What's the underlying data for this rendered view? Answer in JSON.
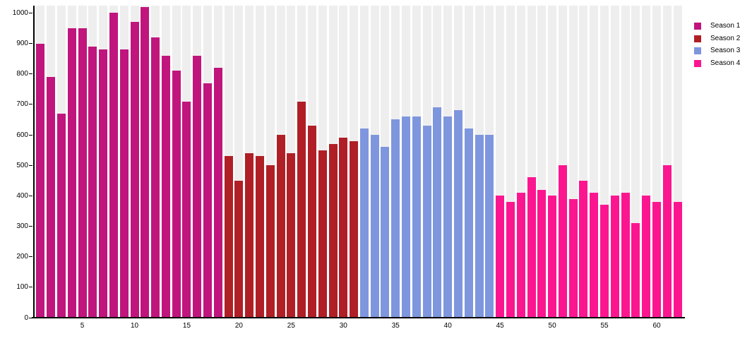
{
  "chart_data": {
    "type": "bar",
    "title": "",
    "xlabel": "",
    "ylabel": "",
    "grid": false,
    "legend_position": "top-right",
    "background_band_color": "#efeeee",
    "axis_color": "#000000",
    "ylim": [
      0,
      1024
    ],
    "y_tick_labels": [
      0,
      100,
      200,
      300,
      400,
      500,
      600,
      700,
      800,
      900,
      1000
    ],
    "x_tick_labels": [
      5,
      10,
      15,
      20,
      25,
      30,
      35,
      40,
      45,
      50,
      55,
      60
    ],
    "x_start": 1,
    "total_bars": 62,
    "series": [
      {
        "name": "Season 1",
        "color": "#c0157d",
        "x_range": [
          1,
          18
        ],
        "values": [
          900,
          790,
          670,
          950,
          950,
          890,
          880,
          1000,
          880,
          970,
          1020,
          920,
          860,
          810,
          710,
          860,
          770,
          820
        ]
      },
      {
        "name": "Season 2",
        "color": "#b01f26",
        "x_range": [
          19,
          31
        ],
        "values": [
          530,
          450,
          540,
          530,
          500,
          600,
          540,
          710,
          630,
          550,
          570,
          590,
          580
        ]
      },
      {
        "name": "Season 3",
        "color": "#7e96de",
        "x_range": [
          32,
          44
        ],
        "values": [
          620,
          600,
          560,
          650,
          660,
          660,
          630,
          690,
          660,
          680,
          620,
          600,
          600
        ]
      },
      {
        "name": "Season 4",
        "color": "#fb1690",
        "x_range": [
          45,
          62
        ],
        "values": [
          400,
          380,
          410,
          460,
          420,
          400,
          500,
          390,
          450,
          410,
          370,
          400,
          410,
          310,
          400,
          380,
          500,
          380
        ]
      }
    ]
  }
}
